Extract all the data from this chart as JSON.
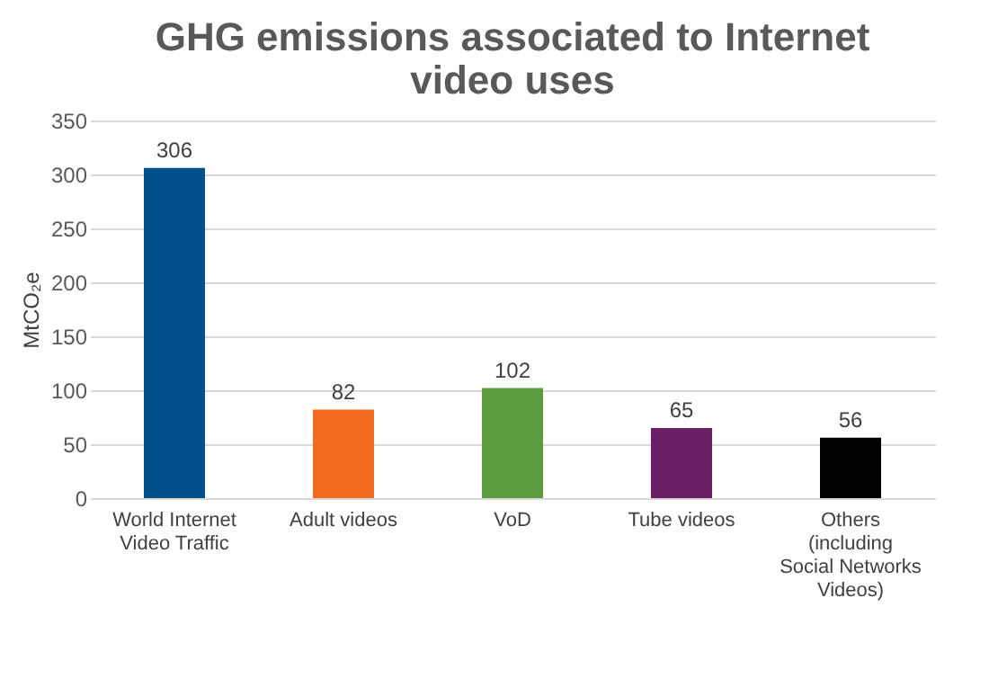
{
  "chart_data": {
    "type": "bar",
    "title": "GHG emissions associated to Internet video uses",
    "ylabel": "MtCO₂e",
    "categories": [
      "World Internet Video Traffic",
      "Adult videos",
      "VoD",
      "Tube videos",
      "Others (including Social Networks Videos)"
    ],
    "values": [
      306,
      82,
      102,
      65,
      56
    ],
    "colors": [
      "#00508a",
      "#f26b21",
      "#5c9a3f",
      "#6a1e63",
      "#000000"
    ],
    "ylim": [
      0,
      350
    ],
    "yticks": [
      0,
      50,
      100,
      150,
      200,
      250,
      300,
      350
    ],
    "grid": "y",
    "data_labels": true
  }
}
